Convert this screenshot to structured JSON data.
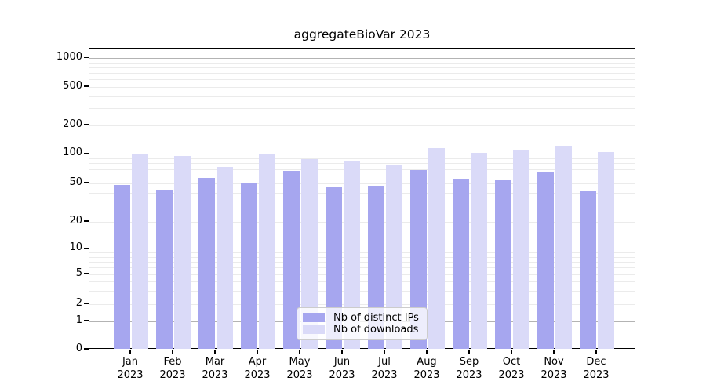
{
  "chart_data": {
    "type": "bar",
    "title": "aggregateBioVar 2023",
    "categories": [
      "Jan 2023",
      "Feb 2023",
      "Mar 2023",
      "Apr 2023",
      "May 2023",
      "Jun 2023",
      "Jul 2023",
      "Aug 2023",
      "Sep 2023",
      "Oct 2023",
      "Nov 2023",
      "Dec 2023"
    ],
    "series": [
      {
        "name": "Nb of distinct IPs",
        "color": "#a6a6ef",
        "values": [
          48,
          43,
          57,
          51,
          67,
          45,
          47,
          68,
          56,
          54,
          65,
          42
        ]
      },
      {
        "name": "Nb of downloads",
        "color": "#dadaf8",
        "values": [
          101,
          96,
          73,
          100,
          89,
          85,
          78,
          115,
          102,
          110,
          122,
          104
        ]
      }
    ],
    "y_axis": {
      "scale": "symlog",
      "tick_values": [
        0,
        1,
        2,
        5,
        10,
        20,
        50,
        100,
        200,
        500,
        1000
      ],
      "tick_labels": [
        "0",
        "1",
        "2",
        "5",
        "10",
        "20",
        "50",
        "100",
        "200",
        "500",
        "1000"
      ],
      "ylim": [
        0,
        1270
      ],
      "grid": true
    },
    "legend": {
      "position": "bottom-center",
      "entries": [
        "Nb of distinct IPs",
        "Nb of downloads"
      ]
    },
    "colors": {
      "major_grid": "#b3b3b3",
      "minor_grid": "#ebebeb",
      "axis": "#000000",
      "legend_border": "#cccccc"
    }
  }
}
